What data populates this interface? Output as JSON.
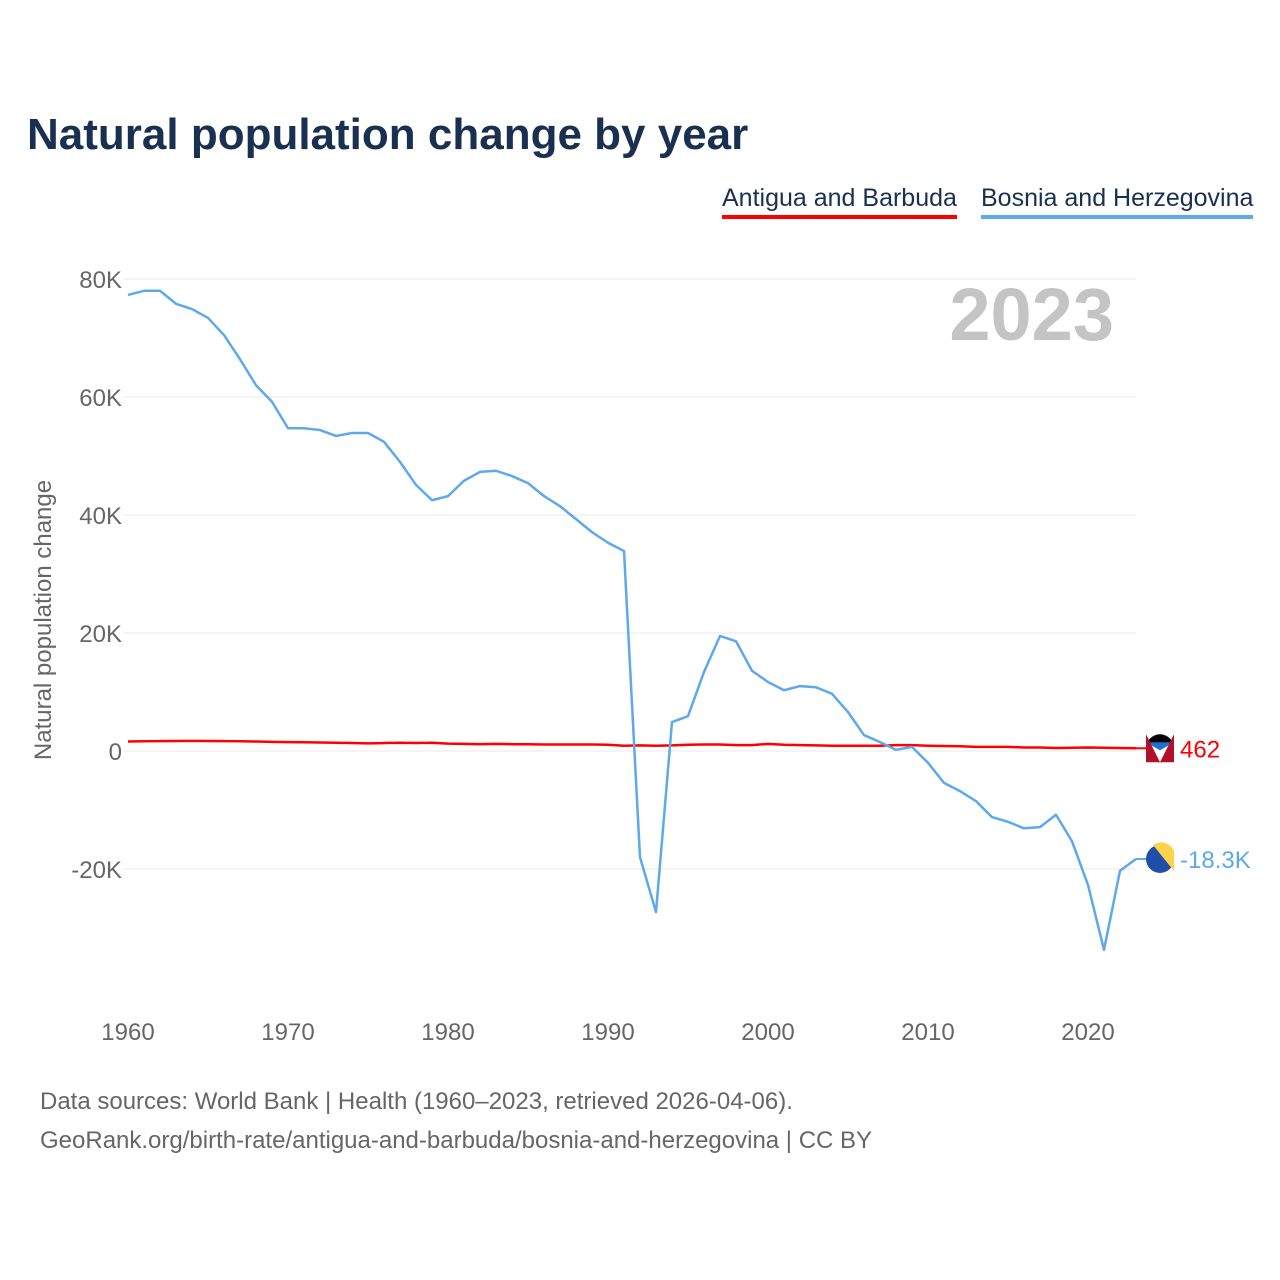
{
  "title": "Natural population change by year",
  "footer": {
    "line1": "Data sources: World Bank | Health (1960–2023, retrieved 2026-04-06).",
    "line2": "GeoRank.org/birth-rate/antigua-and-barbuda/bosnia-and-herzegovina | CC BY"
  },
  "chart_data": {
    "type": "line",
    "title": "Natural population change by year",
    "ylabel": "Natural population change",
    "xlabel": "",
    "year_label": "2023",
    "xlim": [
      1960,
      2023
    ],
    "ylim": [
      -40000,
      80000
    ],
    "xticks": [
      1960,
      1970,
      1980,
      1990,
      2000,
      2010,
      2020
    ],
    "xtick_labels": [
      "1960",
      "1970",
      "1980",
      "1990",
      "2000",
      "2010",
      "2020"
    ],
    "yticks": [
      80000,
      60000,
      40000,
      20000,
      0,
      -20000
    ],
    "ytick_labels": [
      "80K",
      "60K",
      "40K",
      "20K",
      "0",
      "-20K"
    ],
    "grid": true,
    "legend_position": "top-right",
    "series": [
      {
        "name": "Antigua and Barbuda",
        "color": "#ff0000",
        "end_label": "462",
        "values": [
          1600,
          1650,
          1680,
          1700,
          1720,
          1700,
          1680,
          1650,
          1600,
          1550,
          1500,
          1480,
          1450,
          1400,
          1350,
          1300,
          1350,
          1400,
          1350,
          1400,
          1250,
          1200,
          1150,
          1200,
          1150,
          1150,
          1100,
          1100,
          1100,
          1100,
          1050,
          900,
          950,
          900,
          950,
          1050,
          1100,
          1100,
          1000,
          1000,
          1200,
          1050,
          1000,
          950,
          900,
          900,
          900,
          900,
          1000,
          1000,
          900,
          850,
          800,
          700,
          700,
          700,
          600,
          600,
          500,
          550,
          600,
          550,
          500,
          462
        ]
      },
      {
        "name": "Bosnia and Herzegovina",
        "color": "#5ea8ec",
        "end_label": "-18.3K",
        "values": [
          77300,
          78000,
          78000,
          75800,
          74900,
          73400,
          70500,
          66400,
          62000,
          59200,
          54700,
          54700,
          54400,
          53400,
          53900,
          53900,
          52400,
          49000,
          45100,
          42500,
          43200,
          45800,
          47300,
          47500,
          46600,
          45400,
          43200,
          41500,
          39300,
          37100,
          35300,
          33900,
          -18000,
          -27300,
          4900,
          5900,
          13400,
          19500,
          18600,
          13600,
          11700,
          10300,
          11000,
          10800,
          9700,
          6600,
          2700,
          1500,
          200,
          700,
          -2000,
          -5400,
          -6800,
          -8500,
          -11200,
          -12000,
          -13100,
          -12900,
          -10800,
          -15300,
          -22700,
          -33700,
          -20300,
          -18300
        ]
      }
    ]
  }
}
